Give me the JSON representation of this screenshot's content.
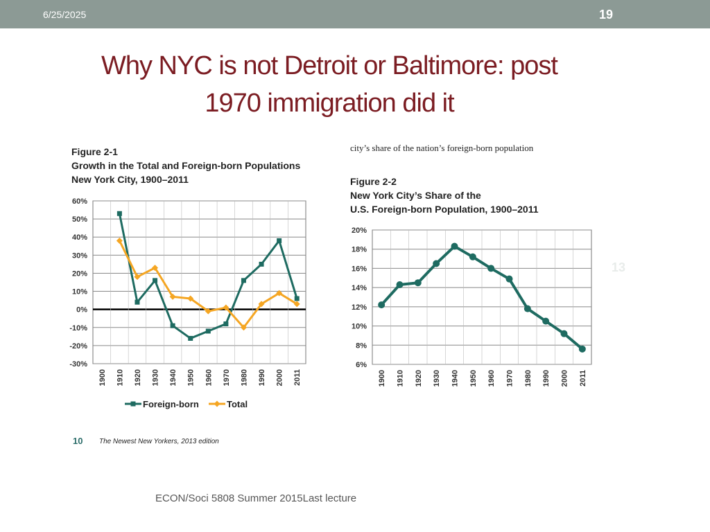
{
  "header": {
    "date": "6/25/2025",
    "slide_number": "19"
  },
  "title_lines": [
    "Why NYC is not Detroit or Baltimore: post",
    "1970 immigration did it"
  ],
  "right_caption": "city’s share of the nation’s foreign-born population",
  "ghost_number": "13",
  "left_page_number": "10",
  "left_source": "The Newest New Yorkers, 2013 edition",
  "footer": "ECON/Soci 5808 Summer 2015Last lecture",
  "colors": {
    "foreign_born": "#1e6b61",
    "total": "#f5a623",
    "zero_line": "#000000",
    "grid": "#888888"
  },
  "chart_data": [
    {
      "type": "line",
      "figure_label": "Figure 2-1",
      "title_lines": [
        "Growth in the Total and Foreign-born Populations",
        "New York City, 1900–2011"
      ],
      "categories": [
        "1900",
        "1910",
        "1920",
        "1930",
        "1940",
        "1950",
        "1960",
        "1970",
        "1980",
        "1990",
        "2000",
        "2011"
      ],
      "series": [
        {
          "name": "Foreign-born",
          "values": [
            null,
            53,
            4,
            16,
            -9,
            -16,
            -12,
            -8,
            16,
            25,
            38,
            6
          ]
        },
        {
          "name": "Total",
          "values": [
            null,
            38,
            18,
            23,
            7,
            6,
            -1,
            1,
            -10,
            3,
            9,
            3
          ]
        }
      ],
      "yticks": [
        "60%",
        "50%",
        "40%",
        "30%",
        "20%",
        "10%",
        "0%",
        "-10%",
        "-20%",
        "-30%"
      ],
      "ylim": [
        -30,
        60
      ],
      "legend": [
        "Foreign-born",
        "Total"
      ]
    },
    {
      "type": "line",
      "figure_label": "Figure 2-2",
      "title_lines": [
        "New York City’s Share of the",
        "U.S. Foreign-born Population, 1900–2011"
      ],
      "categories": [
        "1900",
        "1910",
        "1920",
        "1930",
        "1940",
        "1950",
        "1960",
        "1970",
        "1980",
        "1990",
        "2000",
        "2011"
      ],
      "series": [
        {
          "name": "Share",
          "values": [
            12.2,
            14.3,
            14.5,
            16.5,
            18.3,
            17.2,
            16.0,
            14.9,
            11.8,
            10.5,
            9.2,
            7.6
          ]
        }
      ],
      "yticks": [
        "20%",
        "18%",
        "16%",
        "14%",
        "12%",
        "10%",
        "8%",
        "6%"
      ],
      "ylim": [
        6,
        20
      ]
    }
  ]
}
